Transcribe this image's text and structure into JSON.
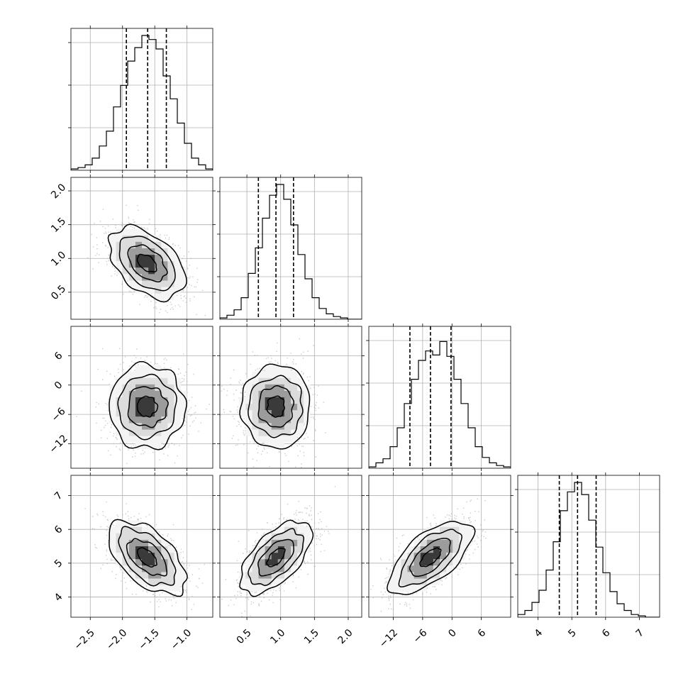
{
  "chart_data": {
    "type": "corner",
    "title": "",
    "parameters": [
      {
        "label": "",
        "range": [
          -2.8,
          -0.6
        ],
        "quantiles": [
          -1.94,
          -1.61,
          -1.32
        ],
        "ticks": [
          "-2.5",
          "-2.0",
          "-1.5",
          "-1.0"
        ],
        "tick_values": [
          -2.5,
          -2.0,
          -1.5,
          -1.0
        ],
        "hist": [
          0.01,
          0.02,
          0.04,
          0.09,
          0.18,
          0.29,
          0.47,
          0.63,
          0.81,
          0.91,
          1.0,
          0.97,
          0.9,
          0.7,
          0.53,
          0.35,
          0.2,
          0.09,
          0.04,
          0.01
        ]
      },
      {
        "label": "",
        "range": [
          0.1,
          2.2
        ],
        "quantiles": [
          0.67,
          0.93,
          1.19
        ],
        "ticks": [
          "0.5",
          "1.0",
          "1.5",
          "2.0"
        ],
        "tick_values": [
          0.5,
          1.0,
          1.5,
          2.0
        ],
        "hist": [
          0.01,
          0.03,
          0.07,
          0.16,
          0.34,
          0.53,
          0.75,
          0.92,
          1.0,
          0.89,
          0.7,
          0.48,
          0.3,
          0.16,
          0.08,
          0.04,
          0.02,
          0.01,
          0.0,
          0.0
        ]
      },
      {
        "label": "",
        "range": [
          -17.0,
          12.0
        ],
        "quantiles": [
          -8.6,
          -4.4,
          -0.2
        ],
        "ticks": [
          "-12",
          "-6",
          "0",
          "6"
        ],
        "tick_values": [
          -12,
          -6,
          0,
          6
        ],
        "hist": [
          0.01,
          0.04,
          0.07,
          0.16,
          0.3,
          0.48,
          0.66,
          0.8,
          0.87,
          0.84,
          0.94,
          0.83,
          0.66,
          0.48,
          0.3,
          0.16,
          0.08,
          0.04,
          0.02,
          0.01
        ]
      },
      {
        "label": "",
        "range": [
          3.4,
          7.6
        ],
        "quantiles": [
          4.63,
          5.17,
          5.72
        ],
        "ticks": [
          "4",
          "5",
          "6",
          "7"
        ],
        "tick_values": [
          4,
          5,
          6,
          7
        ],
        "hist": [
          0.02,
          0.05,
          0.11,
          0.2,
          0.35,
          0.56,
          0.79,
          0.93,
          1.0,
          0.91,
          0.72,
          0.52,
          0.33,
          0.19,
          0.1,
          0.05,
          0.02,
          0.01,
          0.0,
          0.0
        ]
      }
    ],
    "means": [
      -1.62,
      0.93,
      -4.4,
      5.17
    ],
    "sds": [
      0.3,
      0.26,
      4.2,
      0.55
    ],
    "correlations": [
      [
        1.0,
        -0.45,
        0.0,
        -0.55
      ],
      [
        -0.45,
        1.0,
        0.0,
        0.6
      ],
      [
        0.0,
        0.0,
        1.0,
        0.65
      ],
      [
        -0.55,
        0.6,
        0.65,
        1.0
      ]
    ],
    "contour_levels_sigma": [
      0.5,
      1.0,
      1.5,
      2.0
    ],
    "grid": true
  }
}
